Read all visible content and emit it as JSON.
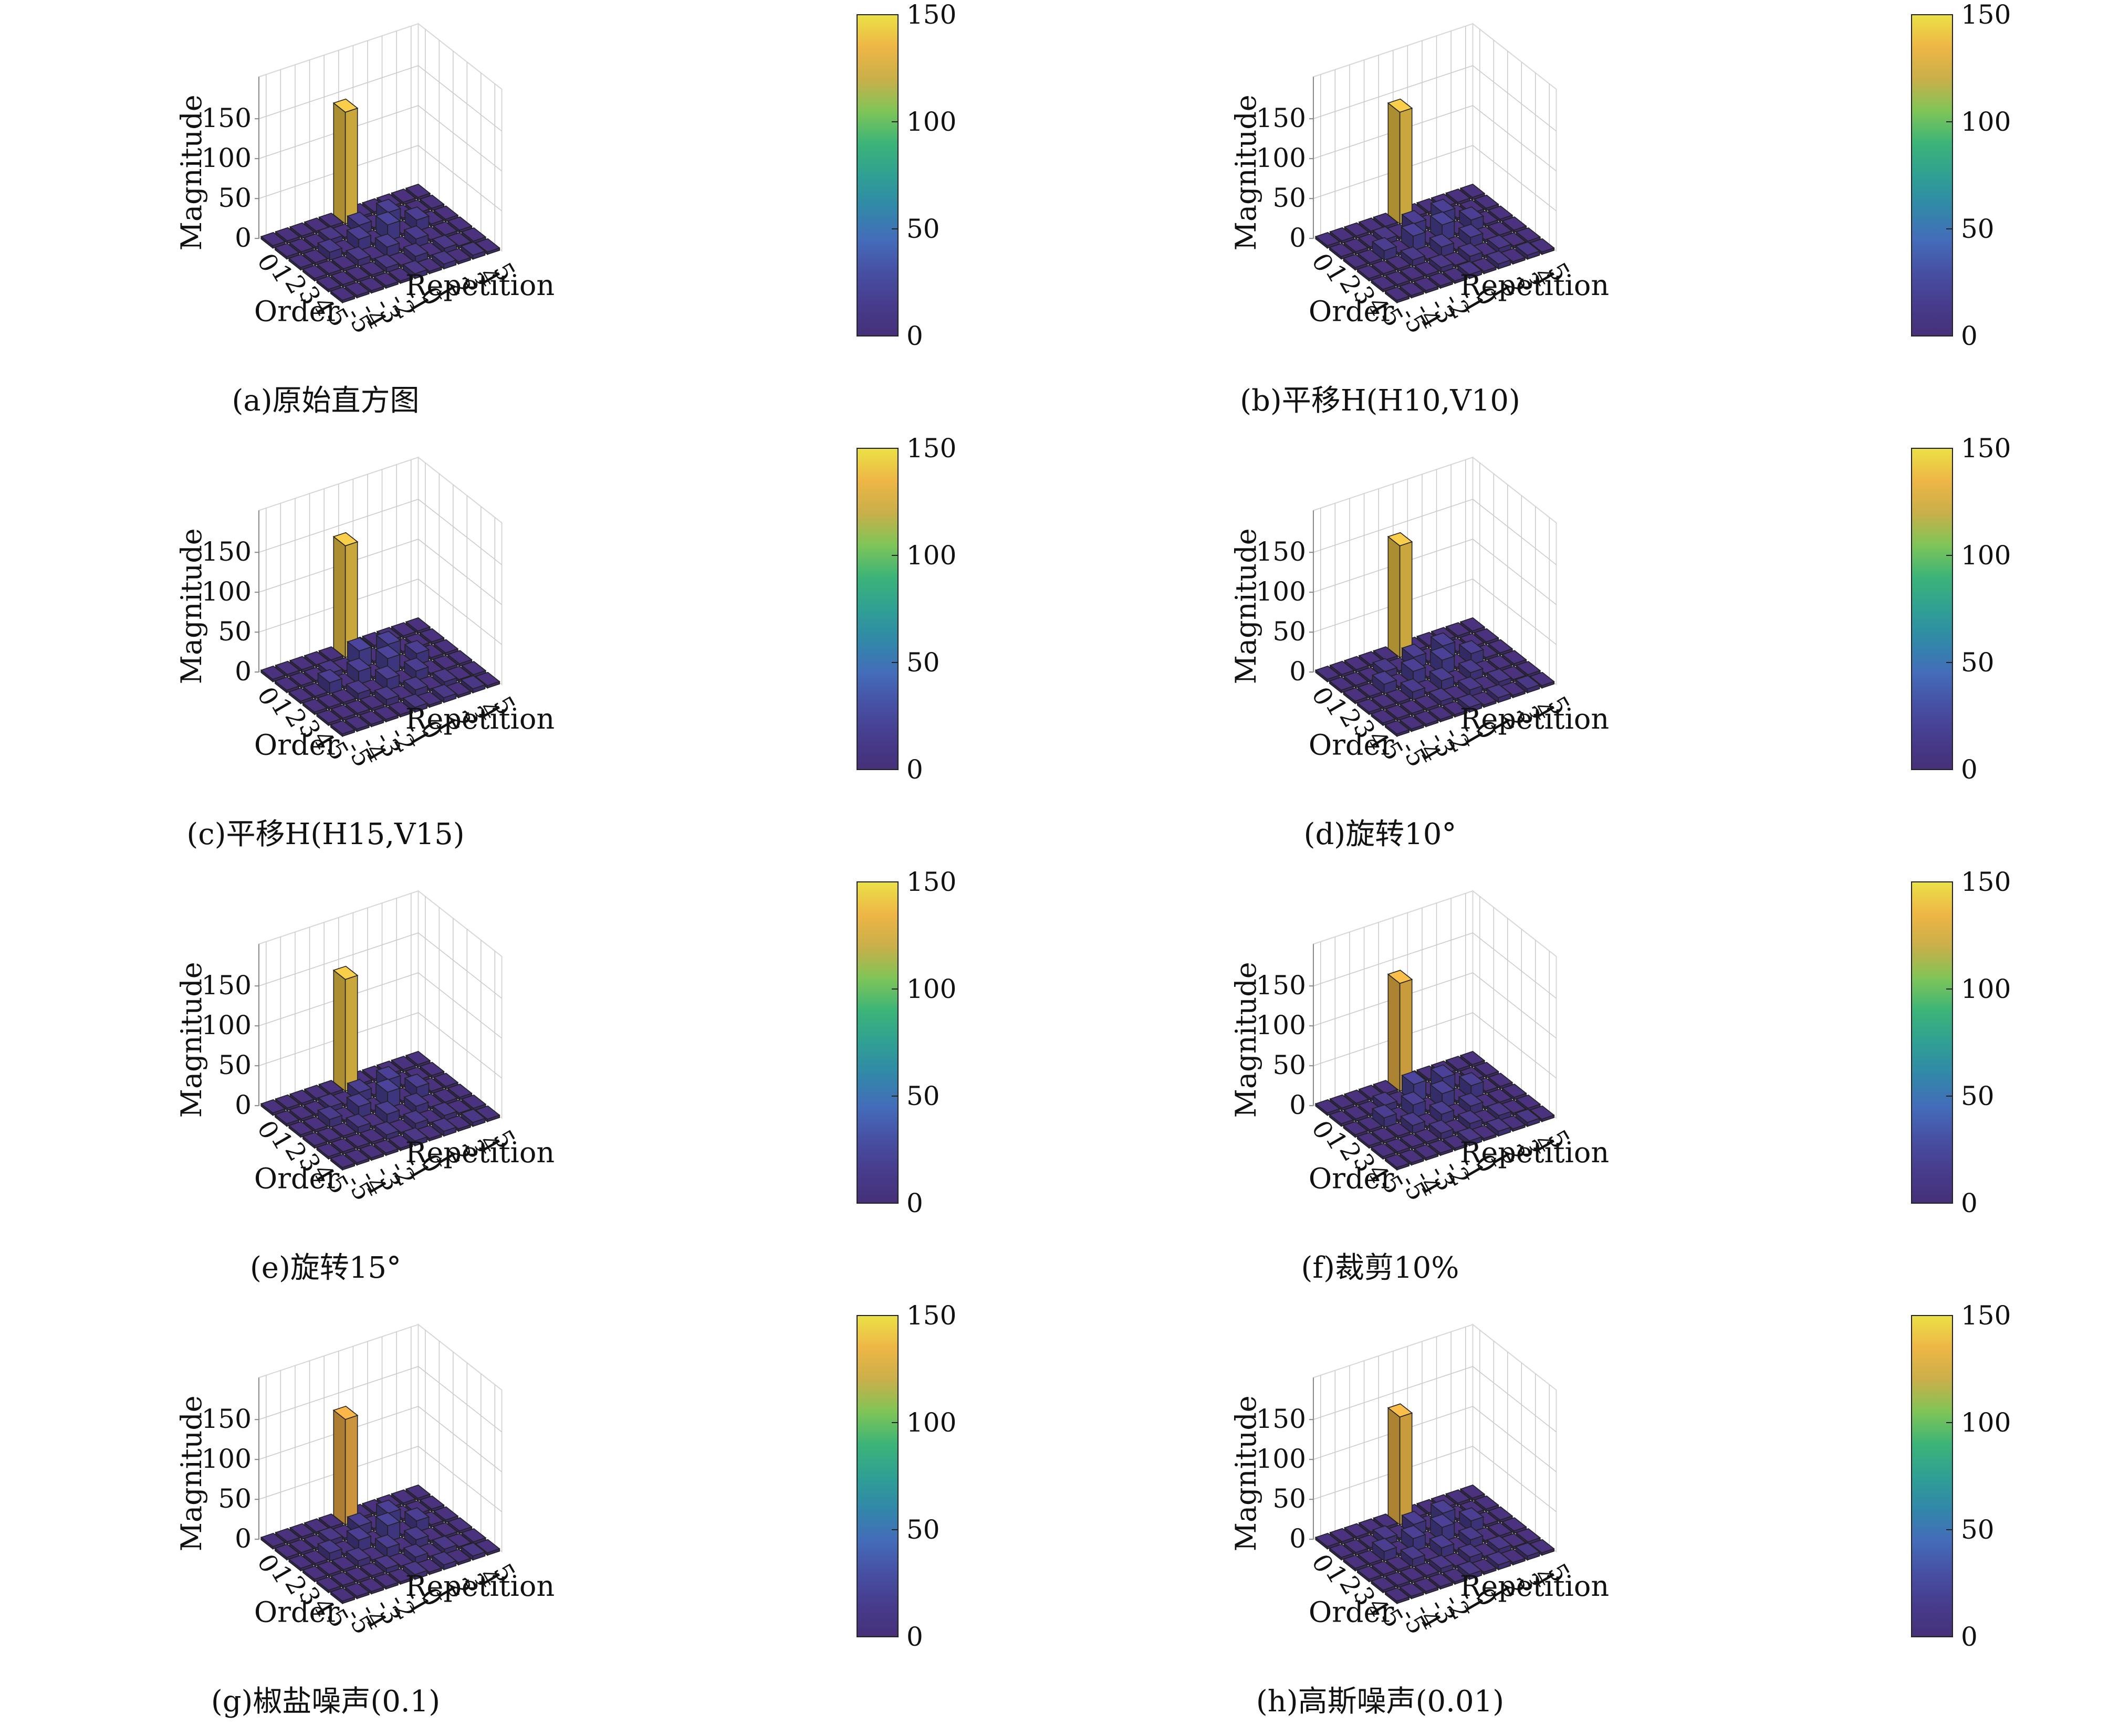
{
  "figure": {
    "colorbar_ticks": [
      "0",
      "50",
      "100",
      "150"
    ]
  },
  "chart_data": [
    {
      "type": "bar3d",
      "caption": "(a)原始直方图",
      "xlabel": "Order",
      "ylabel": "Repetition",
      "zlabel": "Magnitude",
      "order_ticks": [
        "0",
        "1",
        "2",
        "3",
        "4",
        "5"
      ],
      "repetition_ticks": [
        "-5",
        "-4",
        "-3",
        "-2",
        "-1",
        "0",
        "1",
        "2",
        "3",
        "4",
        "5"
      ],
      "z_ticks": [
        "0",
        "50",
        "100",
        "150"
      ],
      "zlim": [
        0,
        150
      ],
      "colorbar": {
        "min": 0,
        "max": 150,
        "ticks": [
          "0",
          "50",
          "100",
          "150"
        ]
      },
      "values": [
        [
          0,
          0,
          0,
          0,
          0,
          140,
          0,
          0,
          0,
          0,
          0
        ],
        [
          0,
          0,
          0,
          6,
          0,
          12,
          0,
          16,
          0,
          0,
          0
        ],
        [
          0,
          0,
          10,
          0,
          14,
          0,
          20,
          0,
          14,
          0,
          0
        ],
        [
          0,
          0,
          0,
          8,
          0,
          12,
          0,
          10,
          0,
          0,
          0
        ],
        [
          0,
          0,
          0,
          0,
          6,
          0,
          8,
          0,
          6,
          0,
          0
        ],
        [
          0,
          0,
          0,
          0,
          0,
          6,
          0,
          6,
          0,
          5,
          0
        ]
      ]
    },
    {
      "type": "bar3d",
      "caption": "(b)平移H(H10,V10)",
      "xlabel": "Order",
      "ylabel": "Repetition",
      "zlabel": "Magnitude",
      "order_ticks": [
        "0",
        "1",
        "2",
        "3",
        "4",
        "5"
      ],
      "repetition_ticks": [
        "-5",
        "-4",
        "-3",
        "-2",
        "-1",
        "0",
        "1",
        "2",
        "3",
        "4",
        "5"
      ],
      "z_ticks": [
        "0",
        "50",
        "100",
        "150"
      ],
      "zlim": [
        0,
        150
      ],
      "colorbar": {
        "min": 0,
        "max": 150,
        "ticks": [
          "0",
          "50",
          "100",
          "150"
        ]
      },
      "values": [
        [
          0,
          0,
          0,
          0,
          0,
          140,
          0,
          0,
          0,
          0,
          0
        ],
        [
          0,
          0,
          0,
          6,
          0,
          14,
          0,
          16,
          0,
          0,
          0
        ],
        [
          0,
          0,
          12,
          0,
          18,
          0,
          20,
          0,
          14,
          0,
          0
        ],
        [
          0,
          0,
          0,
          8,
          0,
          12,
          0,
          12,
          0,
          0,
          0
        ],
        [
          0,
          0,
          0,
          0,
          6,
          0,
          8,
          0,
          6,
          0,
          0
        ],
        [
          0,
          0,
          0,
          0,
          0,
          5,
          0,
          6,
          0,
          5,
          0
        ]
      ]
    },
    {
      "type": "bar3d",
      "caption": "(c)平移H(H15,V15)",
      "xlabel": "Order",
      "ylabel": "Repetition",
      "zlabel": "Magnitude",
      "order_ticks": [
        "0",
        "1",
        "2",
        "3",
        "4",
        "5"
      ],
      "repetition_ticks": [
        "-5",
        "-4",
        "-3",
        "-2",
        "-1",
        "0",
        "1",
        "2",
        "3",
        "4",
        "5"
      ],
      "z_ticks": [
        "0",
        "50",
        "100",
        "150"
      ],
      "zlim": [
        0,
        150
      ],
      "colorbar": {
        "min": 0,
        "max": 150,
        "ticks": [
          "0",
          "50",
          "100",
          "150"
        ]
      },
      "values": [
        [
          0,
          0,
          0,
          0,
          0,
          140,
          0,
          0,
          0,
          0,
          0
        ],
        [
          0,
          0,
          0,
          6,
          0,
          22,
          0,
          18,
          0,
          0,
          0
        ],
        [
          0,
          0,
          14,
          0,
          16,
          0,
          20,
          0,
          14,
          0,
          0
        ],
        [
          0,
          0,
          0,
          8,
          0,
          14,
          0,
          12,
          0,
          0,
          0
        ],
        [
          0,
          0,
          0,
          0,
          8,
          0,
          8,
          0,
          6,
          0,
          0
        ],
        [
          0,
          0,
          0,
          0,
          0,
          6,
          0,
          6,
          0,
          5,
          0
        ]
      ]
    },
    {
      "type": "bar3d",
      "caption": "(d)旋转10°",
      "xlabel": "Order",
      "ylabel": "Repetition",
      "zlabel": "Magnitude",
      "order_ticks": [
        "0",
        "1",
        "2",
        "3",
        "4",
        "5"
      ],
      "repetition_ticks": [
        "-5",
        "-4",
        "-3",
        "-2",
        "-1",
        "0",
        "1",
        "2",
        "3",
        "4",
        "5"
      ],
      "z_ticks": [
        "0",
        "50",
        "100",
        "150"
      ],
      "zlim": [
        0,
        150
      ],
      "colorbar": {
        "min": 0,
        "max": 150,
        "ticks": [
          "0",
          "50",
          "100",
          "150"
        ]
      },
      "values": [
        [
          0,
          0,
          0,
          0,
          0,
          140,
          0,
          0,
          0,
          0,
          0
        ],
        [
          0,
          0,
          0,
          8,
          0,
          14,
          0,
          16,
          0,
          0,
          0
        ],
        [
          0,
          0,
          12,
          0,
          16,
          0,
          18,
          0,
          14,
          0,
          0
        ],
        [
          0,
          0,
          0,
          10,
          0,
          12,
          0,
          10,
          0,
          0,
          0
        ],
        [
          0,
          0,
          0,
          0,
          6,
          0,
          8,
          0,
          6,
          0,
          0
        ],
        [
          0,
          0,
          0,
          0,
          0,
          6,
          0,
          6,
          0,
          5,
          0
        ]
      ]
    },
    {
      "type": "bar3d",
      "caption": "(e)旋转15°",
      "xlabel": "Order",
      "ylabel": "Repetition",
      "zlabel": "Magnitude",
      "order_ticks": [
        "0",
        "1",
        "2",
        "3",
        "4",
        "5"
      ],
      "repetition_ticks": [
        "-5",
        "-4",
        "-3",
        "-2",
        "-1",
        "0",
        "1",
        "2",
        "3",
        "4",
        "5"
      ],
      "z_ticks": [
        "0",
        "50",
        "100",
        "150"
      ],
      "zlim": [
        0,
        150
      ],
      "colorbar": {
        "min": 0,
        "max": 150,
        "ticks": [
          "0",
          "50",
          "100",
          "150"
        ]
      },
      "values": [
        [
          0,
          0,
          0,
          0,
          0,
          140,
          0,
          0,
          0,
          0,
          0
        ],
        [
          0,
          0,
          0,
          6,
          0,
          12,
          0,
          16,
          0,
          0,
          0
        ],
        [
          0,
          0,
          10,
          0,
          14,
          0,
          20,
          0,
          14,
          0,
          0
        ],
        [
          0,
          0,
          0,
          8,
          0,
          12,
          0,
          10,
          0,
          0,
          0
        ],
        [
          0,
          0,
          0,
          0,
          6,
          0,
          8,
          0,
          6,
          0,
          0
        ],
        [
          0,
          0,
          0,
          0,
          0,
          6,
          0,
          6,
          0,
          5,
          0
        ]
      ]
    },
    {
      "type": "bar3d",
      "caption": "(f)裁剪10%",
      "xlabel": "Order",
      "ylabel": "Repetition",
      "zlabel": "Magnitude",
      "order_ticks": [
        "0",
        "1",
        "2",
        "3",
        "4",
        "5"
      ],
      "repetition_ticks": [
        "-5",
        "-4",
        "-3",
        "-2",
        "-1",
        "0",
        "1",
        "2",
        "3",
        "4",
        "5"
      ],
      "z_ticks": [
        "0",
        "50",
        "100",
        "150"
      ],
      "zlim": [
        0,
        150
      ],
      "colorbar": {
        "min": 0,
        "max": 150,
        "ticks": [
          "0",
          "50",
          "100",
          "150"
        ]
      },
      "values": [
        [
          0,
          0,
          0,
          0,
          0,
          135,
          0,
          0,
          0,
          0,
          0
        ],
        [
          0,
          0,
          0,
          8,
          0,
          22,
          0,
          18,
          0,
          0,
          0
        ],
        [
          0,
          0,
          12,
          0,
          16,
          0,
          18,
          0,
          16,
          0,
          0
        ],
        [
          0,
          0,
          0,
          10,
          0,
          12,
          0,
          10,
          0,
          0,
          0
        ],
        [
          0,
          0,
          0,
          0,
          8,
          0,
          8,
          0,
          6,
          0,
          0
        ],
        [
          0,
          0,
          0,
          0,
          0,
          6,
          0,
          6,
          0,
          5,
          0
        ]
      ]
    },
    {
      "type": "bar3d",
      "caption": "(g)椒盐噪声(0.1)",
      "xlabel": "Order",
      "ylabel": "Repetition",
      "zlabel": "Magnitude",
      "order_ticks": [
        "0",
        "1",
        "2",
        "3",
        "4",
        "5"
      ],
      "repetition_ticks": [
        "-5",
        "-4",
        "-3",
        "-2",
        "-1",
        "0",
        "1",
        "2",
        "3",
        "4",
        "5"
      ],
      "z_ticks": [
        "0",
        "50",
        "100",
        "150"
      ],
      "zlim": [
        0,
        150
      ],
      "colorbar": {
        "min": 0,
        "max": 150,
        "ticks": [
          "0",
          "50",
          "100",
          "150"
        ]
      },
      "values": [
        [
          0,
          0,
          0,
          0,
          0,
          132,
          0,
          0,
          0,
          0,
          0
        ],
        [
          0,
          0,
          0,
          6,
          0,
          12,
          0,
          16,
          0,
          0,
          0
        ],
        [
          0,
          0,
          10,
          0,
          14,
          0,
          20,
          0,
          14,
          0,
          0
        ],
        [
          0,
          0,
          0,
          8,
          0,
          12,
          0,
          10,
          0,
          0,
          0
        ],
        [
          0,
          0,
          0,
          0,
          6,
          0,
          8,
          0,
          6,
          0,
          0
        ],
        [
          0,
          0,
          0,
          0,
          0,
          6,
          0,
          6,
          0,
          5,
          0
        ]
      ]
    },
    {
      "type": "bar3d",
      "caption": "(h)高斯噪声(0.01)",
      "xlabel": "Order",
      "ylabel": "Repetition",
      "zlabel": "Magnitude",
      "order_ticks": [
        "0",
        "1",
        "2",
        "3",
        "4",
        "5"
      ],
      "repetition_ticks": [
        "-5",
        "-4",
        "-3",
        "-2",
        "-1",
        "0",
        "1",
        "2",
        "3",
        "4",
        "5"
      ],
      "z_ticks": [
        "0",
        "50",
        "100",
        "150"
      ],
      "zlim": [
        0,
        150
      ],
      "colorbar": {
        "min": 0,
        "max": 150,
        "ticks": [
          "0",
          "50",
          "100",
          "150"
        ]
      },
      "values": [
        [
          0,
          0,
          0,
          0,
          0,
          135,
          0,
          0,
          0,
          0,
          0
        ],
        [
          0,
          0,
          0,
          8,
          0,
          14,
          0,
          16,
          0,
          0,
          0
        ],
        [
          0,
          0,
          12,
          0,
          16,
          0,
          18,
          0,
          14,
          0,
          0
        ],
        [
          0,
          0,
          0,
          10,
          0,
          12,
          0,
          10,
          0,
          0,
          0
        ],
        [
          0,
          0,
          0,
          0,
          6,
          0,
          8,
          0,
          6,
          0,
          0
        ],
        [
          0,
          0,
          0,
          0,
          0,
          6,
          0,
          6,
          0,
          5,
          0
        ]
      ]
    }
  ]
}
